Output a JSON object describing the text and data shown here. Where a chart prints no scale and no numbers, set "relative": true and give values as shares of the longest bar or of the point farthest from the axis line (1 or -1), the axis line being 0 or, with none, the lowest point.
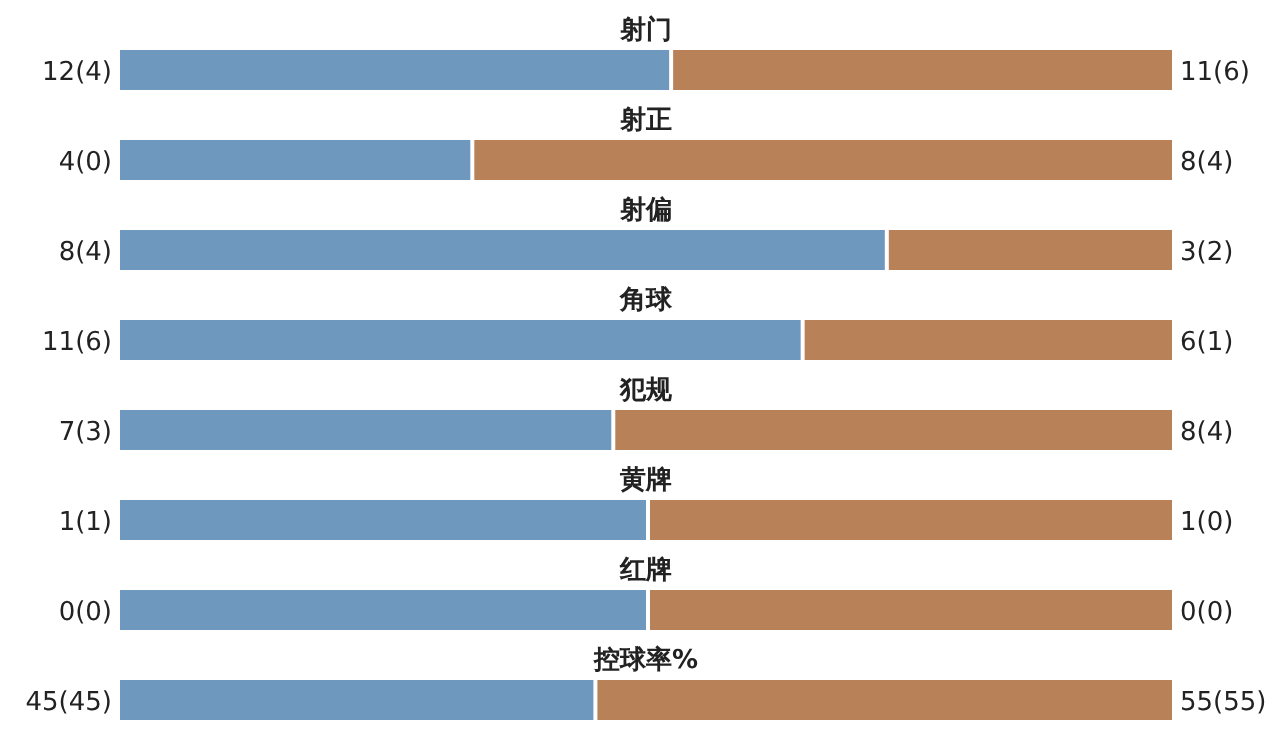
{
  "chart_data": {
    "type": "bar",
    "orientation": "horizontal",
    "stacked": true,
    "relative": true,
    "categories": [
      "射门",
      "射正",
      "射偏",
      "角球",
      "犯规",
      "黄牌",
      "红牌",
      "控球率%"
    ],
    "series": [
      {
        "color": "#6f98bf",
        "values": [
          0.522,
          0.333,
          0.727,
          0.647,
          0.467,
          0.5,
          0.5,
          0.45
        ]
      },
      {
        "color": "#b98157",
        "values": [
          0.478,
          0.667,
          0.273,
          0.353,
          0.533,
          0.5,
          0.5,
          0.55
        ]
      }
    ],
    "annotations": [
      "12(4)",
      "11(6)",
      "4(0)",
      "8(4)",
      "8(4)",
      "3(2)",
      "11(6)",
      "6(1)",
      "7(3)",
      "8(4)",
      "1(1)",
      "1(0)",
      "0(0)",
      "0(0)",
      "45(45)",
      "55(55)"
    ]
  }
}
